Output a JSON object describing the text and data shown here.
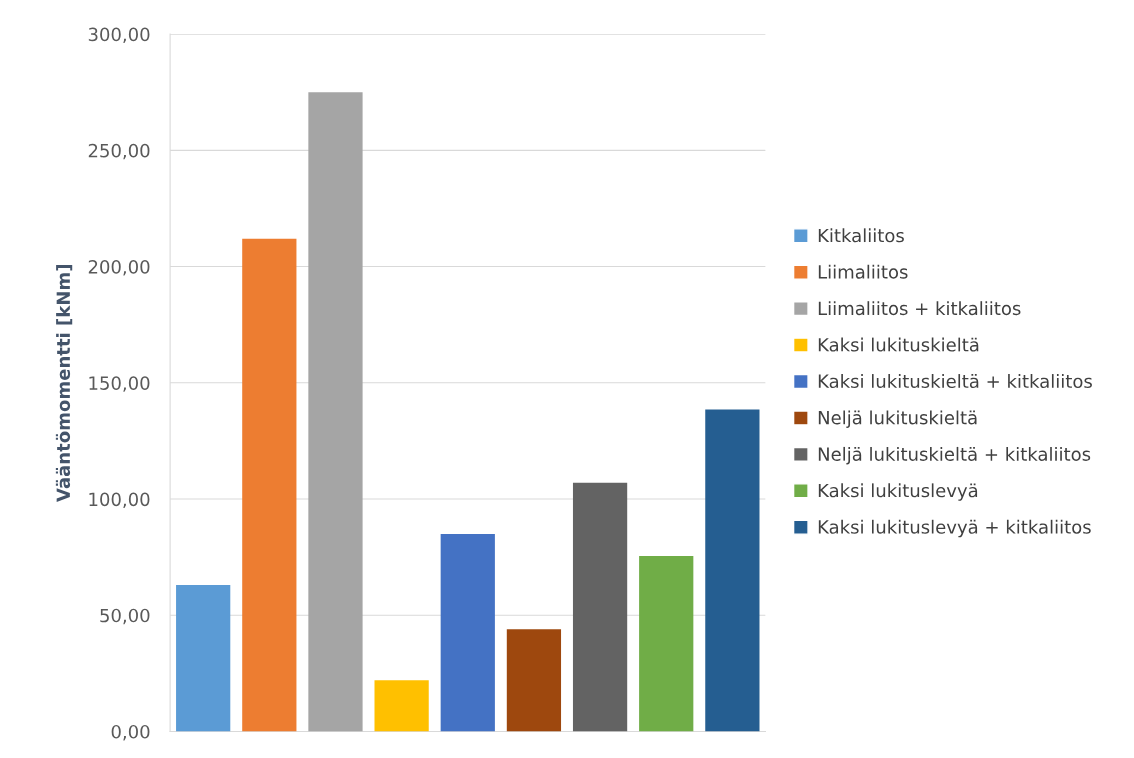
{
  "chart_data": {
    "type": "bar",
    "ylabel": "Vääntömomentti [kNm]",
    "categories": [
      null
    ],
    "series": [
      {
        "name": "Kitkaliitos",
        "color": "#5b9bd5",
        "values": [
          63
        ]
      },
      {
        "name": "Liimaliitos",
        "color": "#ed7d31",
        "values": [
          212
        ]
      },
      {
        "name": "Liimaliitos + kitkaliitos",
        "color": "#a5a5a5",
        "values": [
          275
        ]
      },
      {
        "name": "Kaksi lukituskieltä",
        "color": "#ffc000",
        "values": [
          22
        ]
      },
      {
        "name": "Kaksi lukituskieltä + kitkaliitos",
        "color": "#4472c4",
        "values": [
          85
        ]
      },
      {
        "name": "Neljä lukituskieltä",
        "color": "#9e480e",
        "values": [
          44
        ]
      },
      {
        "name": "Neljä lukituskieltä + kitkaliitos",
        "color": "#636363",
        "values": [
          107
        ]
      },
      {
        "name": "Kaksi lukituslevyä",
        "color": "#70ad47",
        "values": [
          75.5
        ]
      },
      {
        "name": "Kaksi lukituslevyä + kitkaliitos",
        "color": "#255e91",
        "values": [
          138.5
        ]
      }
    ],
    "ylim": [
      0,
      300
    ],
    "yticks": [
      {
        "value": 0,
        "label": "0,00"
      },
      {
        "value": 50,
        "label": "50,00"
      },
      {
        "value": 100,
        "label": "100,00"
      },
      {
        "value": 150,
        "label": "150,00"
      },
      {
        "value": 200,
        "label": "200,00"
      },
      {
        "value": 250,
        "label": "250,00"
      },
      {
        "value": 300,
        "label": "300,00"
      }
    ],
    "grid": "y",
    "legend": "right"
  }
}
